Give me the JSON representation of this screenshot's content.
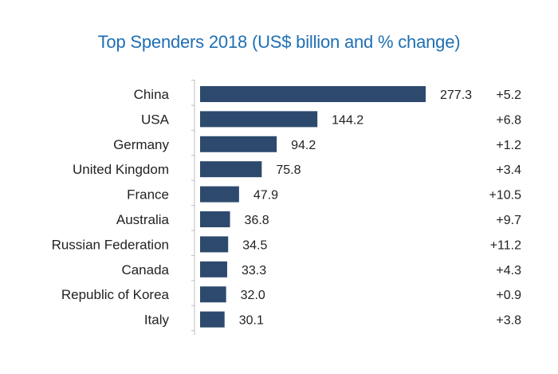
{
  "chart_data": {
    "type": "bar",
    "orientation": "horizontal",
    "title": "Top Spenders 2018 (US$ billion and % change)",
    "categories": [
      "China",
      "USA",
      "Germany",
      "United Kingdom",
      "France",
      "Australia",
      "Russian Federation",
      "Canada",
      "Republic of Korea",
      "Italy"
    ],
    "series": [
      {
        "name": "Spending (US$ billion)",
        "values": [
          277.3,
          144.2,
          94.2,
          75.8,
          47.9,
          36.8,
          34.5,
          33.3,
          32.0,
          30.1
        ]
      },
      {
        "name": "% change",
        "values": [
          "+5.2",
          "+6.8",
          "+1.2",
          "+3.4",
          "+10.5",
          "+9.7",
          "+11.2",
          "+4.3",
          "+0.9",
          "+3.8"
        ]
      }
    ],
    "xlim": [
      0,
      277.3
    ],
    "colors": {
      "bar": "#2d4a6e",
      "title": "#1f6fb3",
      "axis": "#bfbfbf"
    }
  }
}
